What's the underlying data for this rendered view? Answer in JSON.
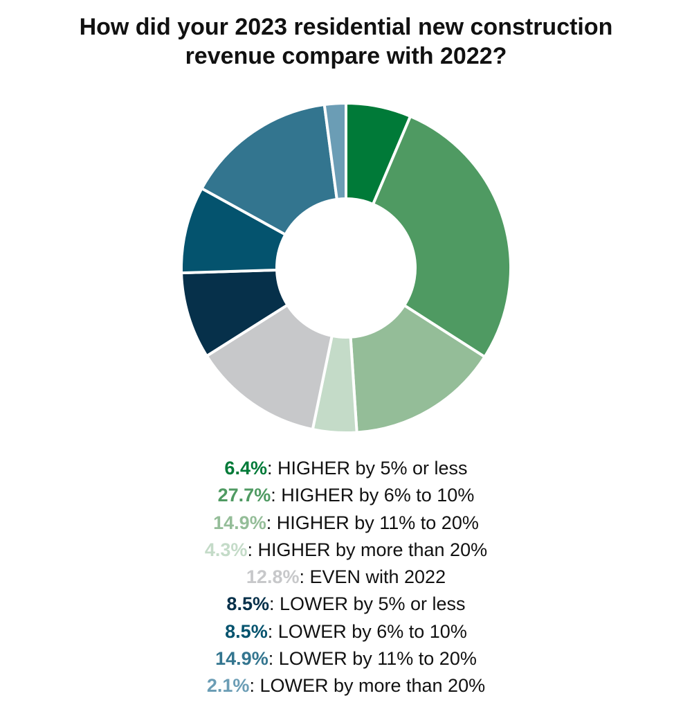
{
  "chart_data": {
    "type": "pie",
    "subtype": "donut",
    "title_lines": [
      "How did your 2023 residential new construction",
      "revenue compare with 2022?"
    ],
    "slices": [
      {
        "label": "HIGHER by 5% or less",
        "value": 6.4,
        "value_label": "6.4%",
        "color": "#007a38"
      },
      {
        "label": "HIGHER by 6% to 10%",
        "value": 27.7,
        "value_label": "27.7%",
        "color": "#4f9a62"
      },
      {
        "label": "HIGHER by 11% to 20%",
        "value": 14.9,
        "value_label": "14.9%",
        "color": "#94bd98"
      },
      {
        "label": "HIGHER by more than 20%",
        "value": 4.3,
        "value_label": "4.3%",
        "color": "#c4dbc8"
      },
      {
        "label": "EVEN with 2022",
        "value": 12.8,
        "value_label": "12.8%",
        "color": "#c7c8ca"
      },
      {
        "label": "LOWER by 5% or less",
        "value": 8.5,
        "value_label": "8.5%",
        "color": "#06304a"
      },
      {
        "label": "LOWER by 6% to 10%",
        "value": 8.5,
        "value_label": "8.5%",
        "color": "#04536e"
      },
      {
        "label": "LOWER by 11% to 20%",
        "value": 14.9,
        "value_label": "14.9%",
        "color": "#33758f"
      },
      {
        "label": "LOWER by more than 20%",
        "value": 2.1,
        "value_label": "2.1%",
        "color": "#6b9db5"
      }
    ],
    "legend_separator": ": ",
    "legend_placement": "bottom"
  }
}
